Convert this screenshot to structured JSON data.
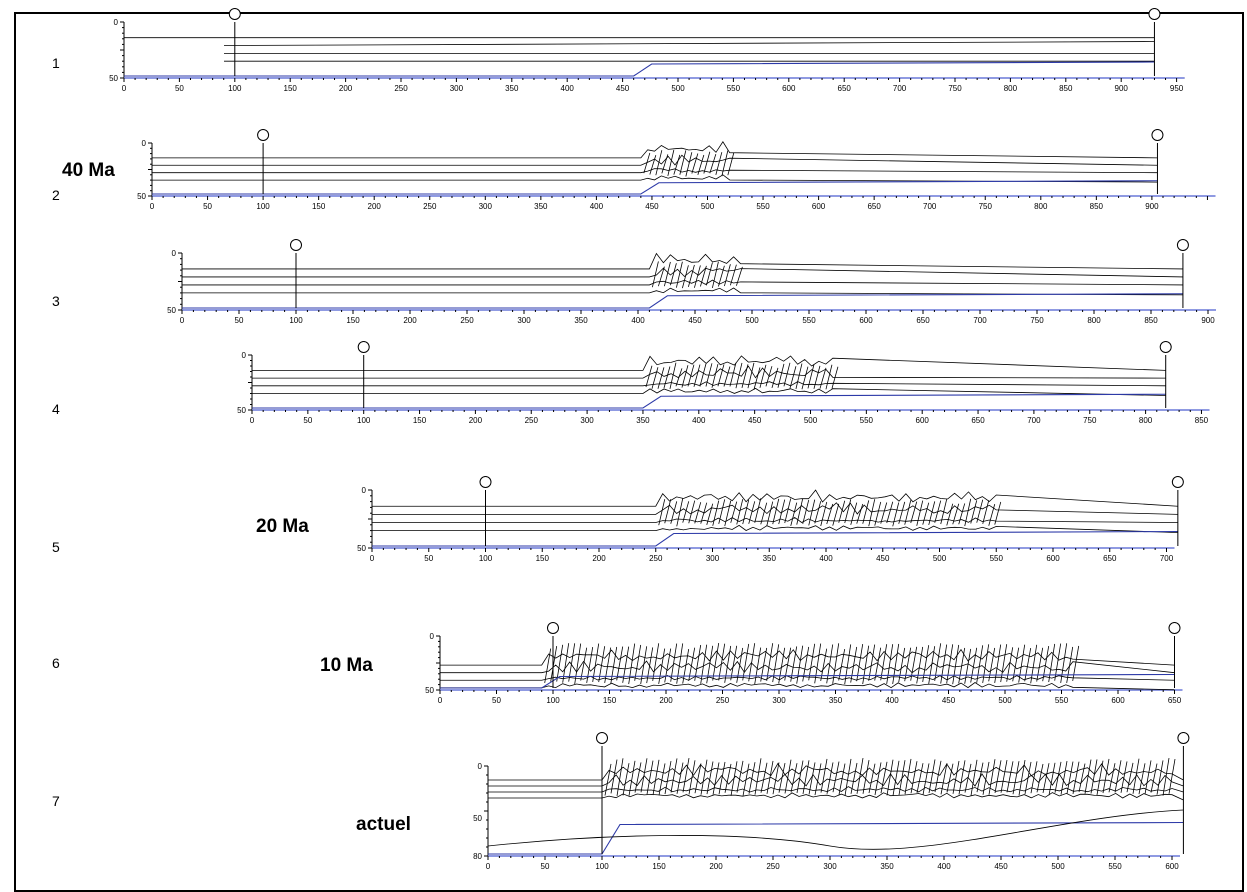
{
  "figure": {
    "panels": [
      {
        "number": "1",
        "age_label": "",
        "length_km": 930,
        "deform_start": null,
        "deform_end": null,
        "axis_max": 950,
        "ticks": [
          "0",
          "50",
          "100",
          "150",
          "200",
          "250",
          "300",
          "350",
          "400",
          "450",
          "500",
          "550",
          "600",
          "650",
          "700",
          "750",
          "800",
          "850",
          "900",
          "950"
        ],
        "depth_ticks": [
          "0",
          "50"
        ]
      },
      {
        "number": "2",
        "age_label": "40 Ma",
        "length_km": 905,
        "deform_start": 440,
        "deform_end": 520,
        "axis_max": 950,
        "ticks": [
          "0",
          "50",
          "100",
          "150",
          "200",
          "250",
          "300",
          "350",
          "400",
          "450",
          "500",
          "550",
          "600",
          "650",
          "700",
          "750",
          "800",
          "850",
          "900"
        ],
        "depth_ticks": [
          "0",
          "50"
        ]
      },
      {
        "number": "3",
        "age_label": "",
        "length_km": 878,
        "deform_start": 410,
        "deform_end": 490,
        "axis_max": 900,
        "ticks": [
          "0",
          "50",
          "100",
          "150",
          "200",
          "250",
          "300",
          "350",
          "400",
          "450",
          "500",
          "550",
          "600",
          "650",
          "700",
          "750",
          "800",
          "850",
          "900"
        ],
        "depth_ticks": [
          "0",
          "50"
        ]
      },
      {
        "number": "4",
        "age_label": "",
        "length_km": 818,
        "deform_start": 350,
        "deform_end": 520,
        "axis_max": 850,
        "ticks": [
          "0",
          "50",
          "100",
          "150",
          "200",
          "250",
          "300",
          "350",
          "400",
          "450",
          "500",
          "550",
          "600",
          "650",
          "700",
          "750",
          "800",
          "850"
        ],
        "depth_ticks": [
          "0",
          "50"
        ]
      },
      {
        "number": "5",
        "age_label": "20 Ma",
        "length_km": 710,
        "deform_start": 250,
        "deform_end": 550,
        "axis_max": 700,
        "ticks": [
          "0",
          "50",
          "100",
          "150",
          "200",
          "250",
          "300",
          "350",
          "400",
          "450",
          "500",
          "550",
          "600",
          "650",
          "700"
        ],
        "depth_ticks": [
          "0",
          "50"
        ]
      },
      {
        "number": "6",
        "age_label": "10 Ma",
        "length_km": 650,
        "deform_start": 90,
        "deform_end": 560,
        "axis_max": 650,
        "ticks": [
          "0",
          "50",
          "100",
          "150",
          "200",
          "250",
          "300",
          "350",
          "400",
          "450",
          "500",
          "550",
          "600",
          "650"
        ],
        "depth_ticks": [
          "0",
          "50"
        ]
      },
      {
        "number": "7",
        "age_label": "actuel",
        "length_km": 610,
        "deform_start": 100,
        "deform_end": 600,
        "axis_max": 600,
        "ticks": [
          "0",
          "50",
          "100",
          "150",
          "200",
          "250",
          "300",
          "350",
          "400",
          "450",
          "500",
          "550",
          "600"
        ],
        "depth_ticks": [
          "0",
          "50",
          "80"
        ]
      }
    ]
  }
}
